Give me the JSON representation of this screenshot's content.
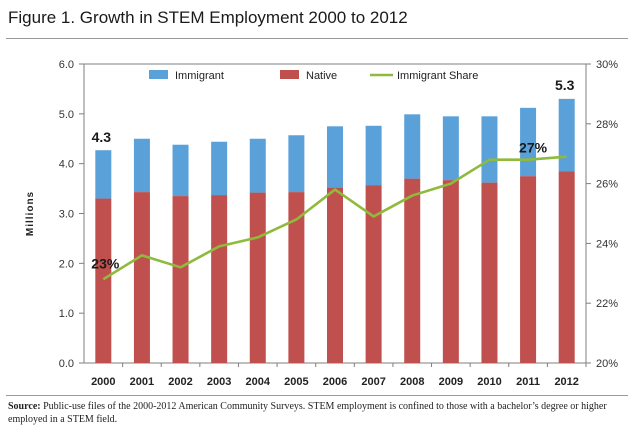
{
  "title": "Figure 1. Growth in STEM Employment 2000 to 2012",
  "source_label": "Source:",
  "source_text": "Public-use files of the 2000-2012 American Community Surveys. STEM employment is confined to those with a bachelor’s degree or higher employed in a STEM field.",
  "colors": {
    "immigrant": "#5aa0d9",
    "native": "#c0504d",
    "share": "#8fba3c"
  },
  "chart_data": {
    "type": "bar",
    "stacked": true,
    "categories": [
      "2000",
      "2001",
      "2002",
      "2003",
      "2004",
      "2005",
      "2006",
      "2007",
      "2008",
      "2009",
      "2010",
      "2011",
      "2012"
    ],
    "series": [
      {
        "name": "Native",
        "values": [
          3.3,
          3.43,
          3.35,
          3.37,
          3.42,
          3.43,
          3.52,
          3.57,
          3.7,
          3.67,
          3.62,
          3.75,
          3.85
        ]
      },
      {
        "name": "Immigrant",
        "values": [
          0.97,
          1.07,
          1.03,
          1.07,
          1.08,
          1.14,
          1.23,
          1.19,
          1.29,
          1.28,
          1.33,
          1.37,
          1.45
        ]
      }
    ],
    "line_series": {
      "name": "Immigrant Share",
      "values": [
        22.8,
        23.6,
        23.2,
        23.9,
        24.2,
        24.8,
        25.8,
        24.9,
        25.6,
        26.0,
        26.8,
        26.8,
        26.9
      ]
    },
    "ylabel": "Millions",
    "ylim": [
      0,
      6
    ],
    "y_ticks": [
      "0.0",
      "1.0",
      "2.0",
      "3.0",
      "4.0",
      "5.0",
      "6.0"
    ],
    "y2lim": [
      20,
      30
    ],
    "y2_ticks": [
      "20%",
      "22%",
      "24%",
      "26%",
      "28%",
      "30%"
    ],
    "annotations": {
      "start_total": "4.3",
      "end_total": "5.3",
      "start_share": "23%",
      "end_share": "27%"
    },
    "legend_position": "top"
  }
}
